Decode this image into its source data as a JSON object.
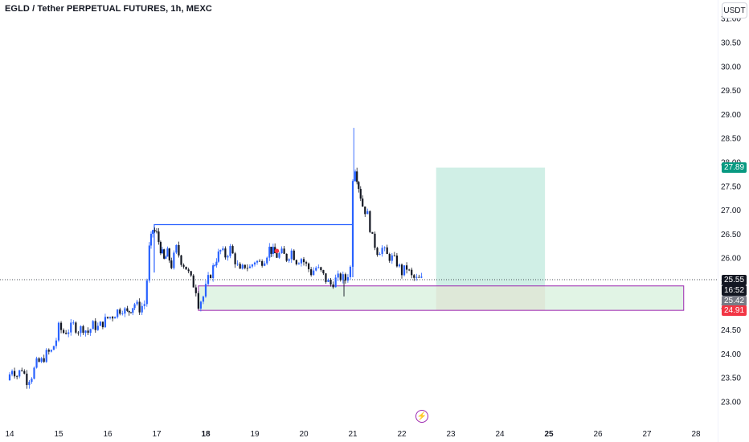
{
  "header": {
    "title": "EGLD / Tether PERPETUAL FUTURES, 1h, MEXC",
    "currency_button": "USDT"
  },
  "price_labels": {
    "current_price": "25.55",
    "countdown": "16:52",
    "entry_price": "25.42",
    "target_price": "27.89",
    "stop_price": "24.91"
  },
  "colors": {
    "bull": "#2962ff",
    "bear": "#131722",
    "target_zone": "#c8ece2",
    "stop_zone": "#f2c9c4",
    "support_box": "#d7f0dc",
    "support_border": "#9c27b0",
    "range_line": "#2962ff",
    "target_badge": "#089981",
    "stop_badge": "#f23645",
    "current_badge": "#131722",
    "entry_badge": "#787b86"
  },
  "chart_data": {
    "type": "candlestick",
    "title": "EGLD / Tether PERPETUAL FUTURES, 1h, MEXC",
    "interval": "1h",
    "currency": "USDT",
    "ylim": [
      22.85,
      31.1
    ],
    "y_ticks": [
      "23.00",
      "23.50",
      "24.00",
      "24.50",
      "25.00",
      "25.50",
      "26.00",
      "26.50",
      "27.00",
      "27.50",
      "28.00",
      "28.50",
      "29.00",
      "29.50",
      "30.00",
      "30.50",
      "31.00"
    ],
    "x_ticks": [
      {
        "label": "14",
        "day": 14,
        "bold": false
      },
      {
        "label": "15",
        "day": 15,
        "bold": false
      },
      {
        "label": "16",
        "day": 16,
        "bold": false
      },
      {
        "label": "17",
        "day": 17,
        "bold": false
      },
      {
        "label": "18",
        "day": 18,
        "bold": true
      },
      {
        "label": "19",
        "day": 19,
        "bold": false
      },
      {
        "label": "20",
        "day": 20,
        "bold": false
      },
      {
        "label": "21",
        "day": 21,
        "bold": false
      },
      {
        "label": "22",
        "day": 22,
        "bold": false
      },
      {
        "label": "23",
        "day": 23,
        "bold": false
      },
      {
        "label": "24",
        "day": 24,
        "bold": false
      },
      {
        "label": "25",
        "day": 25,
        "bold": true
      },
      {
        "label": "26",
        "day": 26,
        "bold": false
      },
      {
        "label": "27",
        "day": 27,
        "bold": false
      },
      {
        "label": "28",
        "day": 28,
        "bold": false
      }
    ],
    "close_path": [
      [
        13.95,
        23.45
      ],
      [
        14.05,
        23.7
      ],
      [
        14.15,
        23.55
      ],
      [
        14.25,
        23.7
      ],
      [
        14.35,
        23.45
      ],
      [
        14.45,
        23.55
      ],
      [
        14.55,
        23.8
      ],
      [
        14.65,
        23.85
      ],
      [
        14.75,
        24.0
      ],
      [
        14.85,
        24.05
      ],
      [
        14.95,
        24.3
      ],
      [
        15.0,
        24.55
      ],
      [
        15.1,
        24.45
      ],
      [
        15.2,
        24.5
      ],
      [
        15.3,
        24.6
      ],
      [
        15.4,
        24.5
      ],
      [
        15.5,
        24.55
      ],
      [
        15.6,
        24.45
      ],
      [
        15.7,
        24.6
      ],
      [
        15.8,
        24.55
      ],
      [
        15.9,
        24.65
      ],
      [
        16.0,
        24.75
      ],
      [
        16.1,
        24.8
      ],
      [
        16.2,
        24.9
      ],
      [
        16.3,
        24.95
      ],
      [
        16.4,
        24.85
      ],
      [
        16.55,
        25.05
      ],
      [
        16.65,
        24.95
      ],
      [
        16.75,
        25.05
      ],
      [
        16.8,
        25.55
      ],
      [
        16.85,
        26.2
      ],
      [
        16.92,
        26.6
      ],
      [
        17.0,
        26.5
      ],
      [
        17.08,
        26.2
      ],
      [
        17.15,
        25.95
      ],
      [
        17.22,
        26.1
      ],
      [
        17.3,
        25.85
      ],
      [
        17.4,
        26.2
      ],
      [
        17.5,
        25.95
      ],
      [
        17.6,
        25.8
      ],
      [
        17.7,
        25.55
      ],
      [
        17.8,
        25.35
      ],
      [
        17.85,
        25.05
      ],
      [
        17.95,
        25.2
      ],
      [
        18.05,
        25.55
      ],
      [
        18.15,
        25.8
      ],
      [
        18.22,
        26.0
      ],
      [
        18.3,
        26.15
      ],
      [
        18.4,
        26.05
      ],
      [
        18.5,
        26.2
      ],
      [
        18.6,
        25.95
      ],
      [
        18.7,
        25.7
      ],
      [
        18.8,
        25.85
      ],
      [
        18.9,
        25.8
      ],
      [
        19.0,
        25.95
      ],
      [
        19.1,
        25.9
      ],
      [
        19.2,
        26.0
      ],
      [
        19.3,
        26.2
      ],
      [
        19.45,
        26.05
      ],
      [
        19.55,
        26.1
      ],
      [
        19.65,
        26.0
      ],
      [
        19.75,
        26.15
      ],
      [
        19.85,
        25.95
      ],
      [
        19.95,
        26.0
      ],
      [
        20.05,
        25.85
      ],
      [
        20.15,
        25.7
      ],
      [
        20.25,
        25.8
      ],
      [
        20.35,
        25.7
      ],
      [
        20.45,
        25.55
      ],
      [
        20.55,
        25.45
      ],
      [
        20.65,
        25.55
      ],
      [
        20.75,
        25.6
      ],
      [
        20.85,
        25.55
      ],
      [
        20.95,
        25.8
      ],
      [
        21.0,
        27.7
      ],
      [
        21.05,
        27.9
      ],
      [
        21.12,
        27.5
      ],
      [
        21.2,
        27.1
      ],
      [
        21.3,
        26.9
      ],
      [
        21.4,
        26.4
      ],
      [
        21.5,
        26.15
      ],
      [
        21.6,
        26.2
      ],
      [
        21.7,
        26.05
      ],
      [
        21.8,
        26.0
      ],
      [
        21.9,
        25.9
      ],
      [
        22.0,
        25.7
      ],
      [
        22.1,
        25.8
      ],
      [
        22.2,
        25.6
      ],
      [
        22.3,
        25.55
      ],
      [
        22.4,
        25.55
      ]
    ],
    "annotations": {
      "range_top": {
        "value": 26.7,
        "from_day": 16.95,
        "to_day": 21.0
      },
      "support_zone": {
        "low": 24.91,
        "high": 25.42,
        "from_day": 17.85,
        "to_day": 27.75
      },
      "long_position": {
        "entry": 25.42,
        "target": 27.89,
        "stop": 24.91,
        "from_day": 22.7,
        "to_day": 24.92
      },
      "marker_dot": {
        "day": 19.45,
        "value": 26.15
      }
    }
  }
}
